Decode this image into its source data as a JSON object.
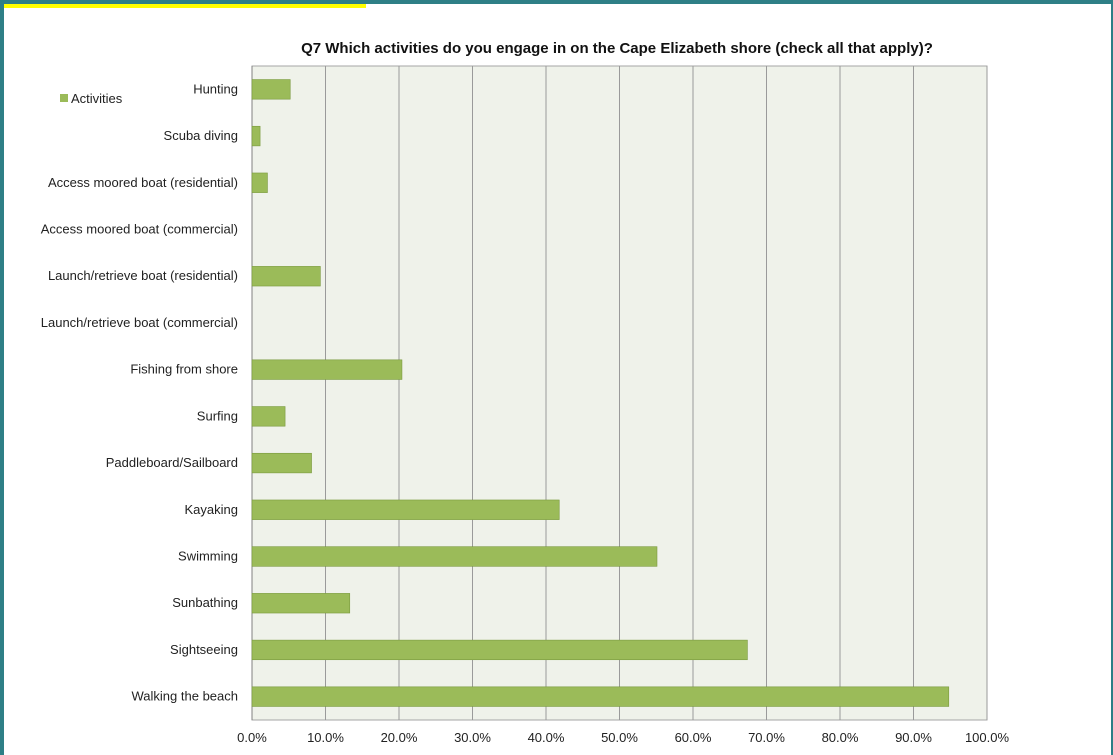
{
  "chart_data": {
    "type": "bar",
    "orientation": "horizontal",
    "title": "Q7 Which activities do you engage in on the Cape Elizabeth shore (check all that apply)?",
    "legend": {
      "position": "top-left",
      "entries": [
        "Activities"
      ]
    },
    "categories": [
      "Hunting",
      "Scuba diving",
      "Access moored boat (residential)",
      "Access moored boat (commercial)",
      "Launch/retrieve boat (residential)",
      "Launch/retrieve boat (commercial)",
      "Fishing from shore",
      "Surfing",
      "Paddleboard/Sailboard",
      "Kayaking",
      "Swimming",
      "Sunbathing",
      "Sightseeing",
      "Walking the beach"
    ],
    "series": [
      {
        "name": "Activities",
        "color": "#9bbb59",
        "values": [
          5.2,
          1.1,
          2.1,
          0,
          9.3,
          0,
          20.4,
          4.5,
          8.1,
          41.8,
          55.1,
          13.3,
          67.4,
          94.8
        ]
      }
    ],
    "x_ticks": [
      "0.0%",
      "10.0%",
      "20.0%",
      "30.0%",
      "40.0%",
      "50.0%",
      "60.0%",
      "70.0%",
      "80.0%",
      "90.0%",
      "100.0%"
    ],
    "xlim": [
      0,
      100
    ],
    "grid": "vertical",
    "plot_background": "#eff2ea",
    "frame_color": "#2e7f86",
    "highlight_color": "#ffff00"
  }
}
